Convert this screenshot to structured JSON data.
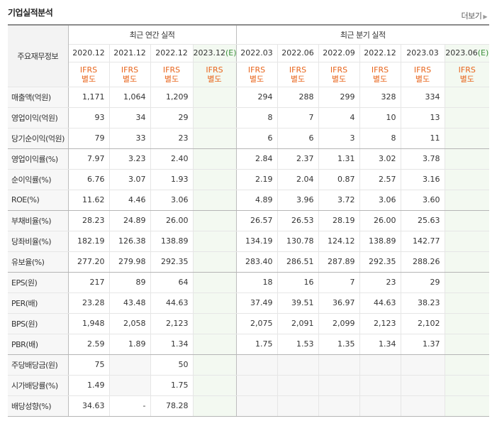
{
  "header": {
    "title": "기업실적분석",
    "more_label": "더보기"
  },
  "table": {
    "row_header_label": "주요재무정보",
    "group_annual": "최근 연간 실적",
    "group_quarter": "최근 분기 실적",
    "periods": [
      {
        "label": "2020.12",
        "est": false
      },
      {
        "label": "2021.12",
        "est": false
      },
      {
        "label": "2022.12",
        "est": false
      },
      {
        "label": "2023.12(E)",
        "est": true
      },
      {
        "label": "2022.03",
        "est": false
      },
      {
        "label": "2022.06",
        "est": false
      },
      {
        "label": "2022.09",
        "est": false
      },
      {
        "label": "2022.12",
        "est": false
      },
      {
        "label": "2023.03",
        "est": false
      },
      {
        "label": "2023.06(E)",
        "est": true
      }
    ],
    "std_label_1": "IFRS",
    "std_label_2": "별도",
    "rows": [
      {
        "label": "매출액(억원)",
        "values": [
          "1,171",
          "1,064",
          "1,209",
          "",
          "294",
          "288",
          "299",
          "328",
          "334",
          ""
        ]
      },
      {
        "label": "영업이익(억원)",
        "values": [
          "93",
          "34",
          "29",
          "",
          "8",
          "7",
          "4",
          "10",
          "13",
          ""
        ]
      },
      {
        "label": "당기순이익(억원)",
        "values": [
          "79",
          "33",
          "23",
          "",
          "6",
          "6",
          "3",
          "8",
          "11",
          ""
        ],
        "sep": true
      },
      {
        "label": "영업이익률(%)",
        "values": [
          "7.97",
          "3.23",
          "2.40",
          "",
          "2.84",
          "2.37",
          "1.31",
          "3.02",
          "3.78",
          ""
        ]
      },
      {
        "label": "순이익률(%)",
        "values": [
          "6.76",
          "3.07",
          "1.93",
          "",
          "2.19",
          "2.04",
          "0.87",
          "2.57",
          "3.16",
          ""
        ]
      },
      {
        "label": "ROE(%)",
        "values": [
          "11.62",
          "4.46",
          "3.06",
          "",
          "4.89",
          "3.96",
          "3.72",
          "3.06",
          "3.60",
          ""
        ],
        "sep": true
      },
      {
        "label": "부채비율(%)",
        "values": [
          "28.23",
          "24.89",
          "26.00",
          "",
          "26.57",
          "26.53",
          "28.19",
          "26.00",
          "25.63",
          ""
        ]
      },
      {
        "label": "당좌비율(%)",
        "values": [
          "182.19",
          "126.38",
          "138.89",
          "",
          "134.19",
          "130.78",
          "124.12",
          "138.89",
          "142.77",
          ""
        ]
      },
      {
        "label": "유보율(%)",
        "values": [
          "277.20",
          "279.98",
          "292.35",
          "",
          "283.40",
          "286.51",
          "287.89",
          "292.35",
          "288.26",
          ""
        ],
        "sep": true
      },
      {
        "label": "EPS(원)",
        "values": [
          "217",
          "89",
          "64",
          "",
          "18",
          "16",
          "7",
          "23",
          "29",
          ""
        ]
      },
      {
        "label": "PER(배)",
        "values": [
          "23.28",
          "43.48",
          "44.63",
          "",
          "37.49",
          "39.51",
          "36.97",
          "44.63",
          "38.23",
          ""
        ]
      },
      {
        "label": "BPS(원)",
        "values": [
          "1,948",
          "2,058",
          "2,123",
          "",
          "2,075",
          "2,091",
          "2,099",
          "2,123",
          "2,102",
          ""
        ]
      },
      {
        "label": "PBR(배)",
        "values": [
          "2.59",
          "1.89",
          "1.34",
          "",
          "1.75",
          "1.53",
          "1.35",
          "1.34",
          "1.37",
          ""
        ],
        "sep": true
      },
      {
        "label": "주당배당금(원)",
        "values": [
          "75",
          "",
          "50",
          "",
          "",
          "",
          "",
          "",
          "",
          ""
        ]
      },
      {
        "label": "시가배당률(%)",
        "values": [
          "1.49",
          "",
          "1.75",
          "",
          "",
          "",
          "",
          "",
          "",
          ""
        ]
      },
      {
        "label": "배당성향(%)",
        "values": [
          "34.63",
          "-",
          "78.28",
          "",
          "",
          "",
          "",
          "",
          "",
          ""
        ],
        "last": true
      }
    ]
  }
}
